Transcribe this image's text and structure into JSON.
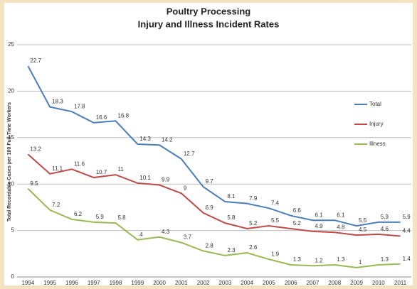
{
  "chart_data": {
    "type": "line",
    "title": "Poultry Processing",
    "subtitle": "Injury and Illness Incident Rates",
    "y_label": "Total Recordable Cases per 100 Full-Time Workers",
    "categories": [
      "1994",
      "1995",
      "1996",
      "1997",
      "1998",
      "1999",
      "2000",
      "2001",
      "2002",
      "2003",
      "2004",
      "2005",
      "2006",
      "2007",
      "2008",
      "2009",
      "2010",
      "2011"
    ],
    "series": [
      {
        "name": "Total",
        "color": "#4a7ebb",
        "values": [
          22.7,
          18.3,
          17.8,
          16.6,
          16.8,
          14.3,
          14.2,
          12.7,
          9.7,
          8.1,
          7.9,
          7.4,
          6.6,
          6.1,
          6.1,
          5.5,
          5.9,
          5.9
        ]
      },
      {
        "name": "Injury",
        "color": "#be4b48",
        "values": [
          13.2,
          11.1,
          11.6,
          10.7,
          11,
          10.1,
          9.9,
          9,
          6.9,
          5.8,
          5.2,
          5.5,
          5.2,
          4.9,
          4.8,
          4.5,
          4.6,
          4.4
        ]
      },
      {
        "name": "Illness",
        "color": "#98b954",
        "values": [
          9.5,
          7.2,
          6.2,
          5.9,
          5.8,
          4,
          4.3,
          3.7,
          2.8,
          2.3,
          2.6,
          1.9,
          1.3,
          1.2,
          1.3,
          1,
          1.3,
          1.4
        ]
      }
    ],
    "ylim": [
      0,
      25
    ],
    "yticks": [
      0,
      5,
      10,
      15,
      20,
      25
    ],
    "grid": true,
    "legend": "right"
  }
}
